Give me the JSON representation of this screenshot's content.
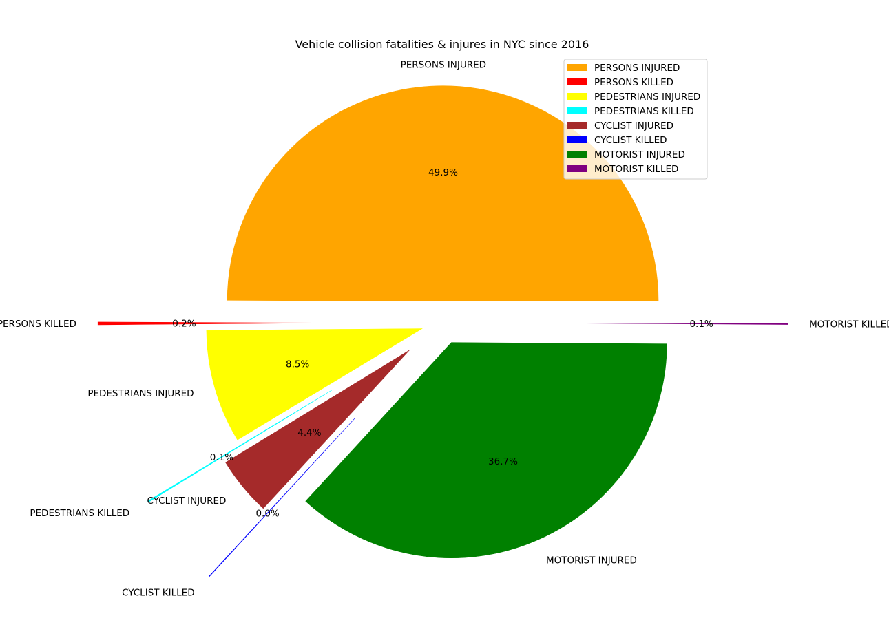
{
  "chart_data": {
    "type": "pie",
    "title": "Vehicle collision fatalities & injures in NYC since 2016",
    "categories": [
      "PERSONS INJURED",
      "PERSONS KILLED",
      "PEDESTRIANS INJURED",
      "PEDESTRIANS KILLED",
      "CYCLIST INJURED",
      "CYCLIST KILLED",
      "MOTORIST INJURED",
      "MOTORIST KILLED"
    ],
    "values": [
      49.9,
      0.2,
      8.5,
      0.1,
      4.4,
      0.04,
      36.7,
      0.1
    ],
    "percent_labels": [
      "49.9%",
      "0.2%",
      "8.5%",
      "0.1%",
      "4.4%",
      "0.0%",
      "36.7%",
      "0.1%"
    ],
    "colors": [
      "#ffa500",
      "#ff0000",
      "#ffff00",
      "#00ffff",
      "#a52a2a",
      "#0000ff",
      "#008000",
      "#800080"
    ],
    "legend": "top-right"
  }
}
